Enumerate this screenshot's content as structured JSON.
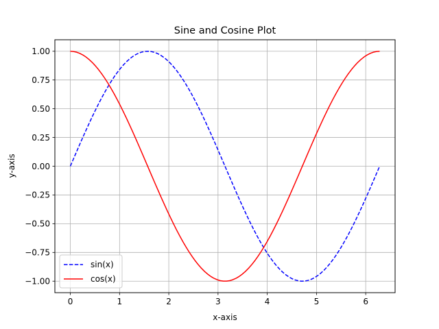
{
  "chart_data": {
    "type": "line",
    "title": "Sine and Cosine Plot",
    "xlabel": "x-axis",
    "ylabel": "y-axis",
    "xlim": [
      -0.314,
      6.597
    ],
    "ylim": [
      -1.1,
      1.1
    ],
    "xticks": [
      0,
      1,
      2,
      3,
      4,
      5,
      6
    ],
    "xtick_labels": [
      "0",
      "1",
      "2",
      "3",
      "4",
      "5",
      "6"
    ],
    "yticks": [
      -1.0,
      -0.75,
      -0.5,
      -0.25,
      0.0,
      0.25,
      0.5,
      0.75,
      1.0
    ],
    "ytick_labels": [
      "−1.00",
      "−0.75",
      "−0.50",
      "−0.25",
      "0.00",
      "0.25",
      "0.50",
      "0.75",
      "1.00"
    ],
    "grid": true,
    "legend_position": "lower-left",
    "series": [
      {
        "name": "sin(x)",
        "function": "sin",
        "x_range": [
          0,
          6.2832
        ],
        "color": "#0000ff",
        "line_style": "dashed"
      },
      {
        "name": "cos(x)",
        "function": "cos",
        "x_range": [
          0,
          6.2832
        ],
        "color": "#ff0000",
        "line_style": "solid"
      }
    ]
  }
}
